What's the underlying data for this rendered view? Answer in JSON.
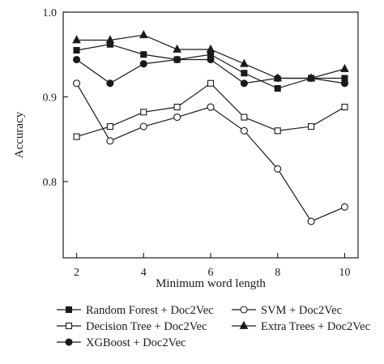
{
  "chart_data": {
    "type": "line",
    "title": "",
    "xlabel": "Minimum word length",
    "ylabel": "Accuracy",
    "x": [
      2,
      3,
      4,
      5,
      6,
      7,
      8,
      9,
      10
    ],
    "xlim": [
      1.6,
      10.4
    ],
    "ylim": [
      0.71,
      1.0
    ],
    "xticks": [
      2,
      4,
      6,
      8,
      10
    ],
    "yticks": [
      0.8,
      0.9,
      1.0
    ],
    "xtick_labels": [
      "2",
      "4",
      "6",
      "8",
      "10"
    ],
    "ytick_labels": [
      "0.8",
      "0.9",
      "1.0"
    ],
    "grid": false,
    "legend_position": "bottom",
    "series": [
      {
        "name": "Random Forest + Doc2Vec",
        "marker": "square-filled",
        "values": [
          0.955,
          0.962,
          0.95,
          0.944,
          0.95,
          0.928,
          0.91,
          0.922,
          0.922
        ]
      },
      {
        "name": "Decision Tree + Doc2Vec",
        "marker": "square-open",
        "values": [
          0.853,
          0.865,
          0.882,
          0.888,
          0.916,
          0.876,
          0.86,
          0.865,
          0.888
        ]
      },
      {
        "name": "XGBoost + Doc2Vec",
        "marker": "circle-filled",
        "values": [
          0.944,
          0.916,
          0.939,
          0.944,
          0.944,
          0.916,
          0.922,
          0.922,
          0.916
        ]
      },
      {
        "name": "SVM + Doc2Vec",
        "marker": "circle-open",
        "values": [
          0.916,
          0.848,
          0.865,
          0.876,
          0.888,
          0.86,
          0.815,
          0.753,
          0.77
        ]
      },
      {
        "name": "Extra Trees + Doc2Vec",
        "marker": "triangle-filled",
        "values": [
          0.967,
          0.967,
          0.973,
          0.956,
          0.956,
          0.939,
          0.922,
          0.922,
          0.933
        ]
      }
    ],
    "legend_order": [
      0,
      3,
      1,
      4,
      2
    ],
    "colors": {
      "line": "#1a1a1a",
      "marker_fill": "#1a1a1a",
      "open_fill": "#ffffff"
    }
  }
}
